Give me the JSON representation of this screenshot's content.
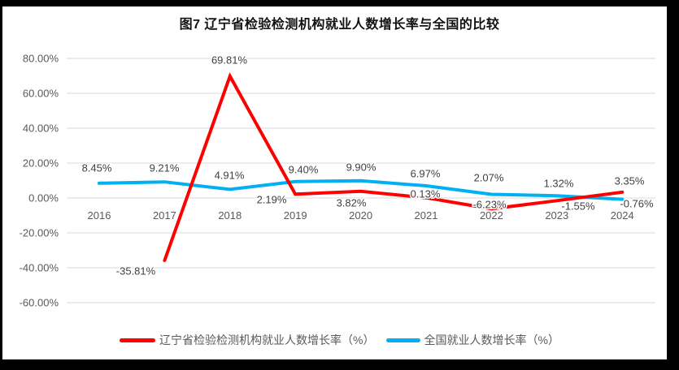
{
  "frame": {
    "border_color": "#000000",
    "background": "#ffffff"
  },
  "chart_data": {
    "type": "line",
    "title": "图7  辽宁省检验检测机构就业人数增长率与全国的比较",
    "categories": [
      "2016",
      "2017",
      "2018",
      "2019",
      "2020",
      "2021",
      "2022",
      "2023",
      "2024"
    ],
    "series": [
      {
        "name": "辽宁省检验检测机构就业人数增长率（%）",
        "color": "#FF0000",
        "values": [
          null,
          -35.81,
          69.81,
          2.19,
          3.82,
          0.13,
          -6.23,
          -1.55,
          3.35
        ],
        "labels": [
          "",
          "-35.81%",
          "69.81%",
          "2.19%",
          "3.82%",
          "0.13%",
          "-6.23%",
          "-1.55%",
          "3.35%"
        ]
      },
      {
        "name": "全国就业人数增长率（%）",
        "color": "#00B0F0",
        "values": [
          8.45,
          9.21,
          4.91,
          9.4,
          9.9,
          6.97,
          2.07,
          1.32,
          -0.76
        ],
        "labels": [
          "8.45%",
          "9.21%",
          "4.91%",
          "9.40%",
          "9.90%",
          "6.97%",
          "2.07%",
          "1.32%",
          "-0.76%"
        ]
      }
    ],
    "y_axis": {
      "tick_labels": [
        "80.00%",
        "60.00%",
        "40.00%",
        "20.00%",
        "0.00%",
        "-20.00%",
        "-40.00%",
        "-60.00%"
      ],
      "tick_values": [
        80,
        60,
        40,
        20,
        0,
        -20,
        -40,
        -60
      ],
      "min": -60,
      "max": 80,
      "format": "percent"
    },
    "grid": true,
    "legend_position": "bottom",
    "gridline_color": "#D9D9D9",
    "tick_color": "#595959",
    "data_label_color": "#404040"
  }
}
